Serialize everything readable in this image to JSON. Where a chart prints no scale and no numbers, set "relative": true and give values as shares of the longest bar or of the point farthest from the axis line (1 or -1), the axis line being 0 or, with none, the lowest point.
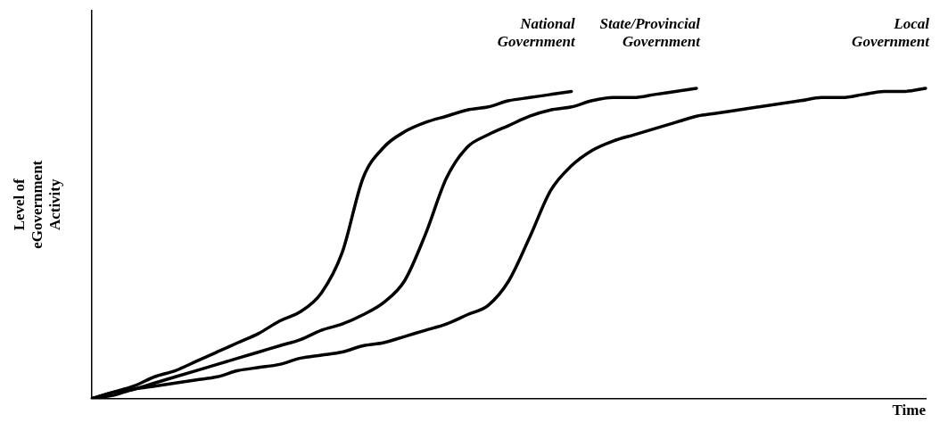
{
  "chart_data": {
    "type": "line",
    "relative": true,
    "xlabel": "Time",
    "ylabel": "Level of\neGovernment\nActivity",
    "legend": false,
    "grid": false,
    "marker": "none",
    "line_style": "solid",
    "categories": [
      null,
      null,
      null,
      null,
      null,
      null,
      null,
      null,
      null,
      null,
      null,
      null,
      null,
      null,
      null,
      null,
      null,
      null,
      null,
      null,
      null,
      null,
      null,
      null,
      null,
      null,
      null,
      null,
      null,
      null,
      null,
      null,
      null,
      null,
      null,
      null,
      null,
      null,
      null,
      null,
      null
    ],
    "series": [
      {
        "name": "National\nGovernment",
        "color": "#000000",
        "values": [
          0,
          0.02,
          0.04,
          0.07,
          0.09,
          0.12,
          0.15,
          0.18,
          0.21,
          0.25,
          0.28,
          0.34,
          0.47,
          0.71,
          0.81,
          0.86,
          0.89,
          0.91,
          0.93,
          0.94,
          0.96,
          0.97,
          0.98,
          0.99,
          null,
          null,
          null,
          null,
          null,
          null,
          null,
          null,
          null,
          null,
          null,
          null,
          null,
          null,
          null,
          null,
          null
        ]
      },
      {
        "name": "State/Provincial\nGovernment",
        "color": "#000000",
        "values": [
          0,
          0.02,
          0.03,
          0.05,
          0.07,
          0.09,
          0.11,
          0.13,
          0.15,
          0.17,
          0.19,
          0.22,
          0.24,
          0.27,
          0.31,
          0.38,
          0.53,
          0.71,
          0.81,
          0.85,
          0.88,
          0.91,
          0.93,
          0.94,
          0.96,
          0.97,
          0.97,
          0.98,
          0.99,
          1,
          null,
          null,
          null,
          null,
          null,
          null,
          null,
          null,
          null,
          null,
          null
        ]
      },
      {
        "name": "Local\nGovernment",
        "color": "#000000",
        "values": [
          0,
          0.01,
          0.03,
          0.04,
          0.05,
          0.06,
          0.07,
          0.09,
          0.1,
          0.11,
          0.13,
          0.14,
          0.15,
          0.17,
          0.18,
          0.2,
          0.22,
          0.24,
          0.27,
          0.3,
          0.38,
          0.52,
          0.67,
          0.75,
          0.8,
          0.83,
          0.85,
          0.87,
          0.89,
          0.91,
          0.92,
          0.93,
          0.94,
          0.95,
          0.96,
          0.97,
          0.97,
          0.98,
          0.99,
          0.99,
          1
        ]
      }
    ]
  }
}
